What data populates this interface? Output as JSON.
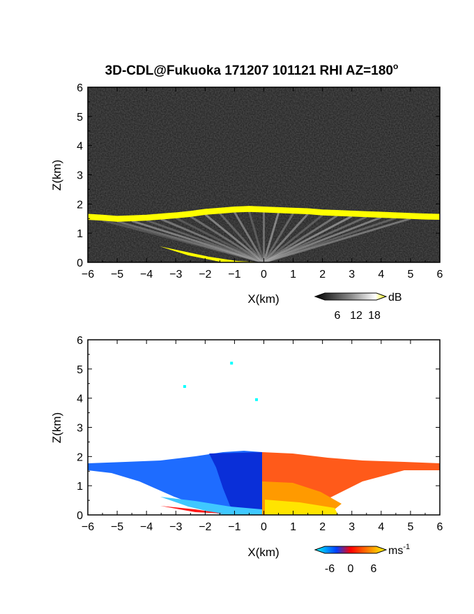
{
  "title": "3D-CDL@Fukuoka 171207 101121 RHI AZ=180",
  "title_sup": "o",
  "chart_data": [
    {
      "type": "heatmap",
      "panel": "reflectivity",
      "xlabel": "X(km)",
      "ylabel": "Z(km)",
      "xlim": [
        -6,
        6
      ],
      "ylim": [
        0,
        6
      ],
      "x_ticks": [
        -6,
        -5,
        -4,
        -3,
        -2,
        -1,
        0,
        1,
        2,
        3,
        4,
        5,
        6
      ],
      "y_ticks": [
        0,
        1,
        2,
        3,
        4,
        5,
        6
      ],
      "background_color": "#1c1c1c",
      "boundary_layer_top": {
        "x": [
          -6,
          -5.5,
          -5,
          -4.5,
          -4,
          -3.5,
          -3,
          -2.5,
          -2,
          -1.5,
          -1,
          -0.5,
          0,
          0.5,
          1,
          1.5,
          2,
          2.5,
          3,
          3.5,
          4,
          4.5,
          5,
          5.5,
          6
        ],
        "z": [
          1.65,
          1.62,
          1.58,
          1.6,
          1.62,
          1.66,
          1.7,
          1.75,
          1.82,
          1.86,
          1.9,
          1.92,
          1.9,
          1.88,
          1.86,
          1.84,
          1.8,
          1.78,
          1.76,
          1.74,
          1.72,
          1.7,
          1.68,
          1.66,
          1.65
        ]
      },
      "colorbar": {
        "label": "dB",
        "ticks": [
          "6",
          "12",
          "18"
        ],
        "colors": [
          "#000000",
          "#555555",
          "#aaaaaa",
          "#ffffff",
          "#ffff00"
        ]
      }
    },
    {
      "type": "heatmap",
      "panel": "doppler_velocity",
      "xlabel": "X(km)",
      "ylabel": "Z(km)",
      "xlim": [
        -6,
        6
      ],
      "ylim": [
        0,
        6
      ],
      "x_ticks": [
        -6,
        -5,
        -4,
        -3,
        -2,
        -1,
        0,
        1,
        2,
        3,
        4,
        5,
        6
      ],
      "y_ticks": [
        0,
        1,
        2,
        3,
        4,
        5,
        6
      ],
      "background_color": "#ffffff",
      "isolated_points": [
        {
          "x": -1.1,
          "z": 5.2
        },
        {
          "x": -2.7,
          "z": 4.4
        },
        {
          "x": -0.25,
          "z": 3.95
        }
      ],
      "colorbar": {
        "label": "ms",
        "label_sup": "-1",
        "ticks": [
          "-6",
          "0",
          "6"
        ],
        "colors": [
          "#00ffff",
          "#0040ff",
          "#ff0000",
          "#ff8000",
          "#ffff00"
        ]
      }
    }
  ]
}
